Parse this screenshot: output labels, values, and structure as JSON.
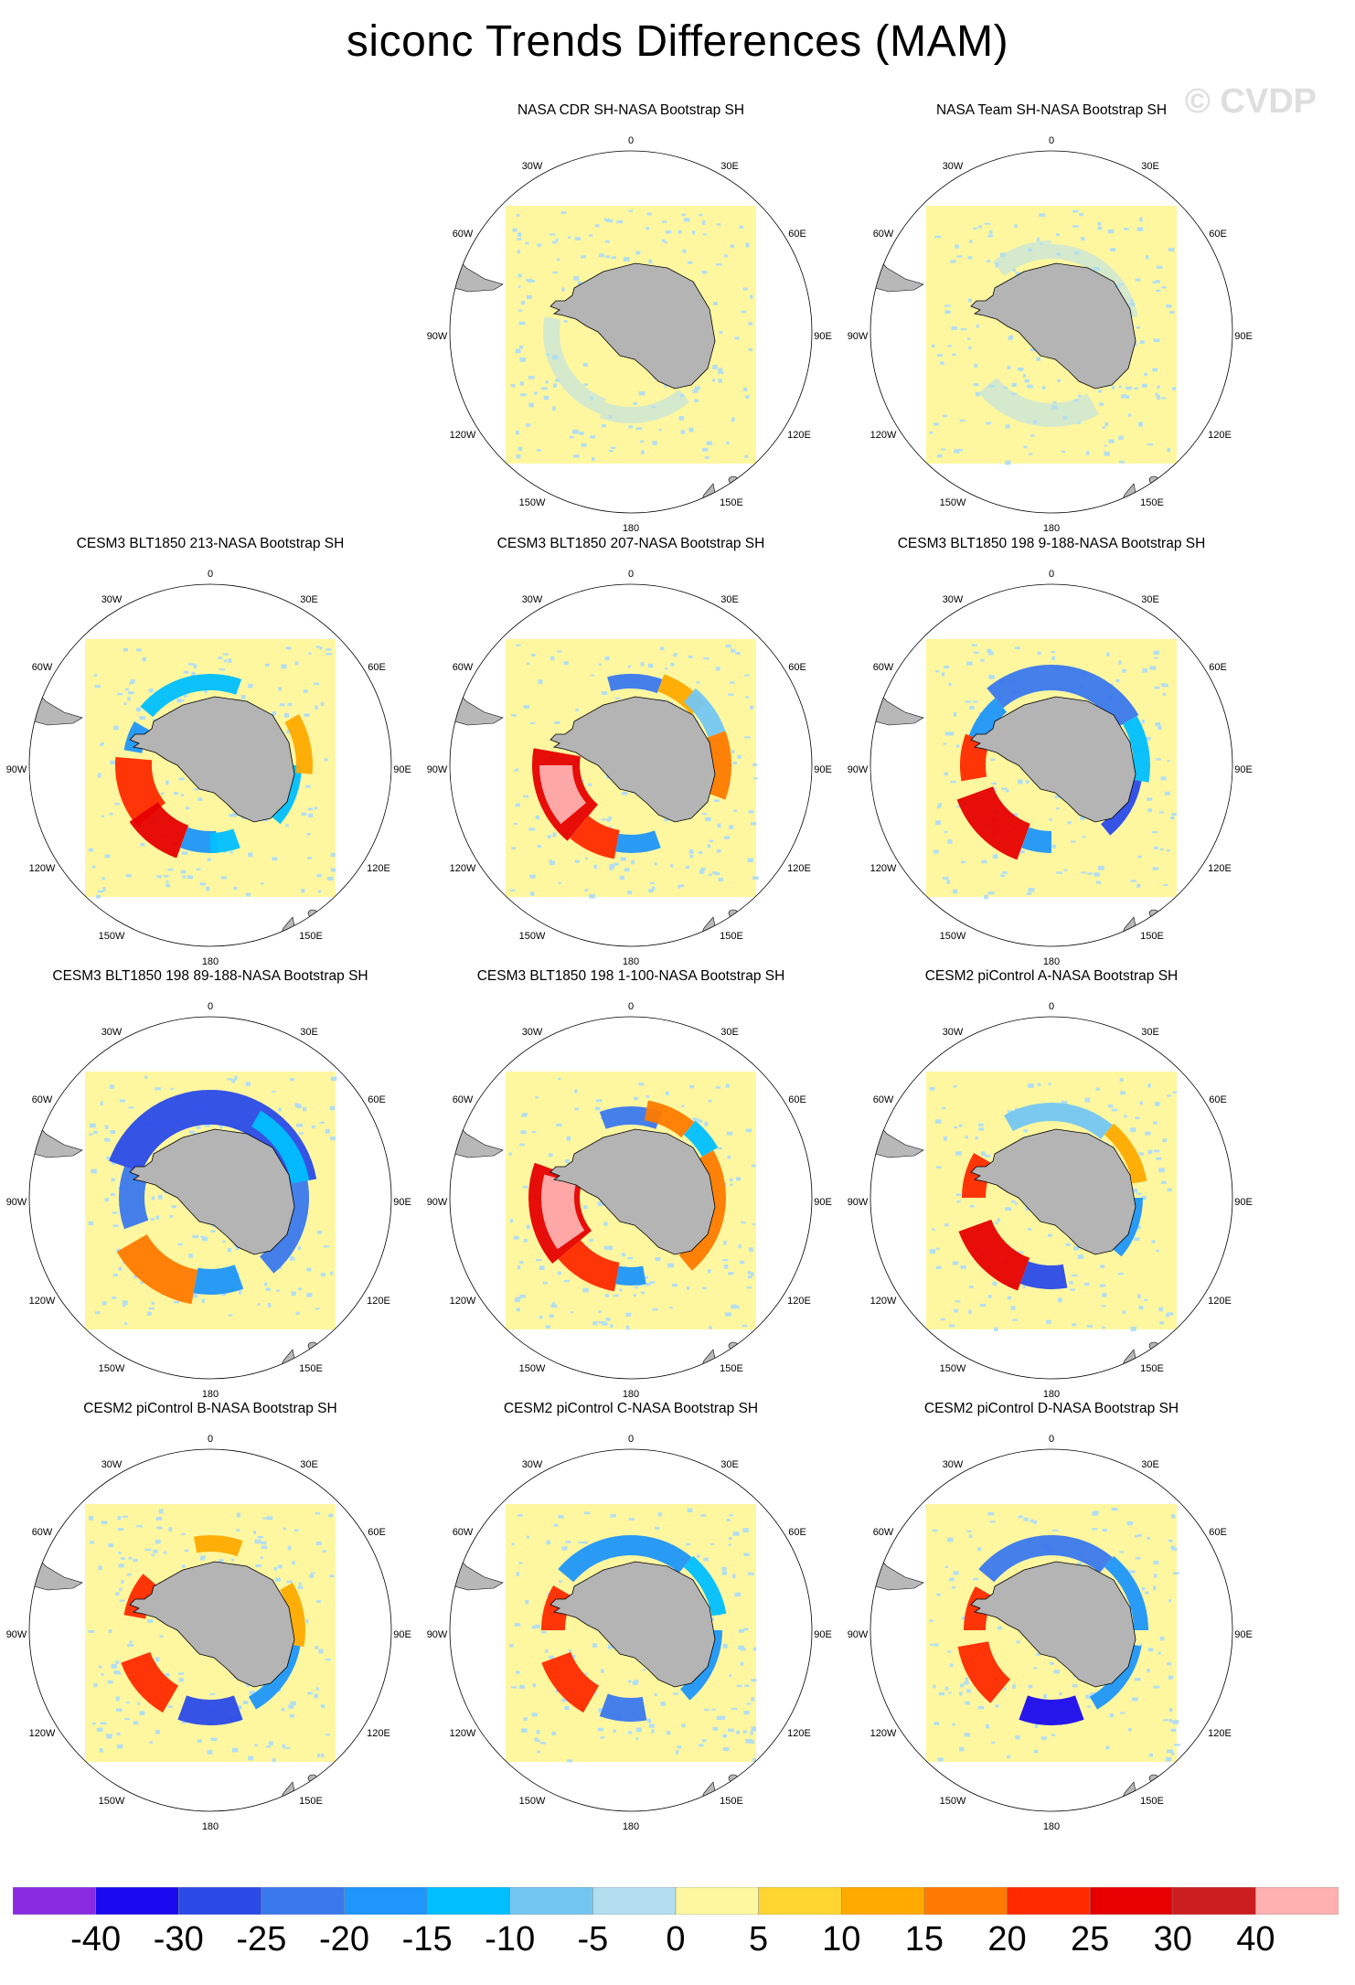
{
  "title": "siconc Trends Differences (MAM)",
  "watermark": "© CVDP",
  "lon_labels": {
    "n0": "0",
    "e30": "30E",
    "e60": "60E",
    "e90": "90E",
    "e120": "120E",
    "e150": "150E",
    "s180": "180",
    "w150": "150W",
    "w120": "120W",
    "w90": "90W",
    "w60": "60W",
    "w30": "30W"
  },
  "panels": [
    {
      "title": "NASA CDR SH-NASA Bootstrap SH",
      "pattern": "obs1"
    },
    {
      "title": "NASA Team SH-NASA Bootstrap SH",
      "pattern": "obs2"
    },
    {
      "title": "CESM3 BLT1850 213-NASA Bootstrap SH",
      "pattern": "m213"
    },
    {
      "title": "CESM3 BLT1850 207-NASA Bootstrap SH",
      "pattern": "m207"
    },
    {
      "title": "CESM3 BLT1850 198 9-188-NASA Bootstrap SH",
      "pattern": "m198a"
    },
    {
      "title": "CESM3 BLT1850 198 89-188-NASA Bootstrap SH",
      "pattern": "m198b"
    },
    {
      "title": "CESM3 BLT1850 198 1-100-NASA Bootstrap SH",
      "pattern": "m198c"
    },
    {
      "title": "CESM2 piControl A-NASA Bootstrap SH",
      "pattern": "pcA"
    },
    {
      "title": "CESM2 piControl B-NASA Bootstrap SH",
      "pattern": "pcB"
    },
    {
      "title": "CESM2 piControl C-NASA Bootstrap SH",
      "pattern": "pcC"
    },
    {
      "title": "CESM2 piControl D-NASA Bootstrap SH",
      "pattern": "pcD"
    }
  ],
  "colorbar": {
    "labels": [
      "-40",
      "-30",
      "-25",
      "-20",
      "-15",
      "-10",
      "-5",
      "0",
      "5",
      "10",
      "15",
      "20",
      "25",
      "30",
      "40"
    ],
    "colors": [
      "#8a2be2",
      "#1a0af0",
      "#2a4ae8",
      "#3a78ee",
      "#1e96fa",
      "#00bfff",
      "#74c6f2",
      "#b2def0",
      "#fff7a0",
      "#ffd530",
      "#ffaa00",
      "#ff7a00",
      "#ff2a00",
      "#e60000",
      "#cc1e1e",
      "#ffb0b0"
    ]
  }
}
